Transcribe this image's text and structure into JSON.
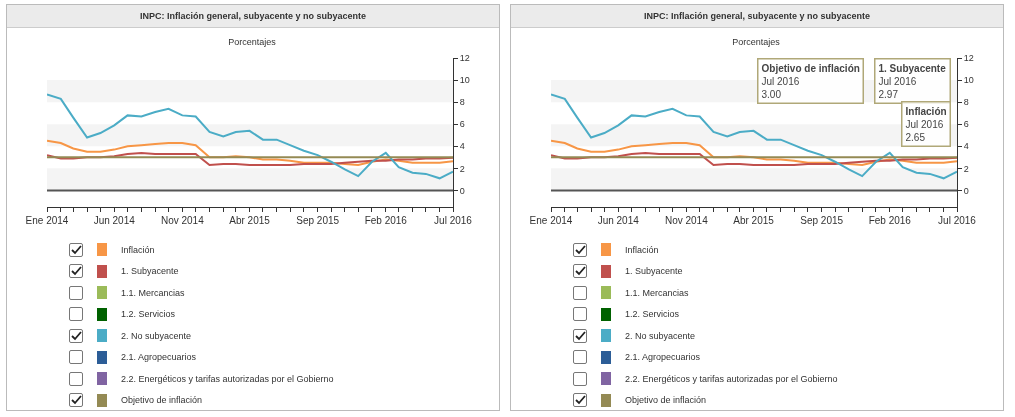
{
  "chart_data": [
    {
      "type": "line",
      "title": "INPC: Inflación general, subyacente y no subyacente",
      "subtitle": "Porcentajes",
      "x": [
        "2014-01",
        "2014-02",
        "2014-03",
        "2014-04",
        "2014-05",
        "2014-06",
        "2014-07",
        "2014-08",
        "2014-09",
        "2014-10",
        "2014-11",
        "2014-12",
        "2015-01",
        "2015-02",
        "2015-03",
        "2015-04",
        "2015-05",
        "2015-06",
        "2015-07",
        "2015-08",
        "2015-09",
        "2015-10",
        "2015-11",
        "2015-12",
        "2016-01",
        "2016-02",
        "2016-03",
        "2016-04",
        "2016-05",
        "2016-06",
        "2016-07"
      ],
      "series": [
        {
          "name": "Inflación",
          "color": "#f79646",
          "values": [
            4.5,
            4.3,
            3.8,
            3.5,
            3.5,
            3.7,
            4.0,
            4.1,
            4.2,
            4.3,
            4.3,
            4.1,
            3.0,
            3.0,
            3.1,
            3.0,
            2.8,
            2.8,
            2.7,
            2.5,
            2.5,
            2.5,
            2.4,
            2.3,
            2.6,
            2.8,
            2.7,
            2.5,
            2.5,
            2.5,
            2.65
          ]
        },
        {
          "name": "1. Subyacente",
          "color": "#c0504d",
          "values": [
            3.2,
            2.9,
            2.9,
            3.0,
            3.0,
            3.1,
            3.3,
            3.4,
            3.3,
            3.3,
            3.3,
            3.3,
            2.3,
            2.4,
            2.4,
            2.3,
            2.3,
            2.3,
            2.3,
            2.4,
            2.4,
            2.4,
            2.5,
            2.6,
            2.7,
            2.7,
            2.8,
            2.8,
            2.9,
            2.9,
            2.97
          ]
        },
        {
          "name": "1.1. Mercancias",
          "color": "#9bbb59",
          "values": [
            null,
            null,
            null,
            null,
            null,
            null,
            null,
            null,
            null,
            null,
            null,
            null,
            null,
            null,
            null,
            null,
            null,
            null,
            null,
            null,
            null,
            null,
            null,
            null,
            null,
            null,
            null,
            null,
            null,
            null,
            null
          ]
        },
        {
          "name": "1.2. Servicios",
          "color": "#006100",
          "values": [
            null,
            null,
            null,
            null,
            null,
            null,
            null,
            null,
            null,
            null,
            null,
            null,
            null,
            null,
            null,
            null,
            null,
            null,
            null,
            null,
            null,
            null,
            null,
            null,
            null,
            null,
            null,
            null,
            null,
            null,
            null
          ]
        },
        {
          "name": "2. No subyacente",
          "color": "#4bacc6",
          "values": [
            8.7,
            8.3,
            6.6,
            4.8,
            5.2,
            5.9,
            6.8,
            6.7,
            7.1,
            7.4,
            6.8,
            6.7,
            5.3,
            4.9,
            5.3,
            5.4,
            4.6,
            4.6,
            4.1,
            3.6,
            3.2,
            2.6,
            1.9,
            1.3,
            2.6,
            3.4,
            2.1,
            1.6,
            1.5,
            1.1,
            1.7
          ]
        },
        {
          "name": "2.1. Agropecuarios",
          "color": "#2c5d97",
          "values": [
            null,
            null,
            null,
            null,
            null,
            null,
            null,
            null,
            null,
            null,
            null,
            null,
            null,
            null,
            null,
            null,
            null,
            null,
            null,
            null,
            null,
            null,
            null,
            null,
            null,
            null,
            null,
            null,
            null,
            null,
            null
          ]
        },
        {
          "name": "2.2. Energéticos y tarifas autorizadas por el Gobierno",
          "color": "#8064a2",
          "values": [
            null,
            null,
            null,
            null,
            null,
            null,
            null,
            null,
            null,
            null,
            null,
            null,
            null,
            null,
            null,
            null,
            null,
            null,
            null,
            null,
            null,
            null,
            null,
            null,
            null,
            null,
            null,
            null,
            null,
            null,
            null
          ]
        },
        {
          "name": "Objetivo de inflación",
          "color": "#948a54",
          "values": [
            3,
            3,
            3,
            3,
            3,
            3,
            3,
            3,
            3,
            3,
            3,
            3,
            3,
            3,
            3,
            3,
            3,
            3,
            3,
            3,
            3,
            3,
            3,
            3,
            3,
            3,
            3,
            3,
            3,
            3,
            3.0
          ]
        }
      ],
      "xlim": [
        "2014-01",
        "2016-07"
      ],
      "xticks": [
        {
          "value": "2014-01",
          "label": "Ene 2014"
        },
        {
          "value": "2014-02",
          "label": null
        },
        {
          "value": "2014-03",
          "label": null
        },
        {
          "value": "2014-04",
          "label": null
        },
        {
          "value": "2014-05",
          "label": null
        },
        {
          "value": "2014-06",
          "label": "Jun 2014"
        },
        {
          "value": "2014-07",
          "label": null
        },
        {
          "value": "2014-08",
          "label": null
        },
        {
          "value": "2014-09",
          "label": null
        },
        {
          "value": "2014-10",
          "label": null
        },
        {
          "value": "2014-11",
          "label": "Nov 2014"
        },
        {
          "value": "2014-12",
          "label": null
        },
        {
          "value": "2015-01",
          "label": null
        },
        {
          "value": "2015-02",
          "label": null
        },
        {
          "value": "2015-03",
          "label": null
        },
        {
          "value": "2015-04",
          "label": "Abr 2015"
        },
        {
          "value": "2015-05",
          "label": null
        },
        {
          "value": "2015-06",
          "label": null
        },
        {
          "value": "2015-07",
          "label": null
        },
        {
          "value": "2015-08",
          "label": null
        },
        {
          "value": "2015-09",
          "label": "Sep 2015"
        },
        {
          "value": "2015-10",
          "label": null
        },
        {
          "value": "2015-11",
          "label": null
        },
        {
          "value": "2015-12",
          "label": null
        },
        {
          "value": "2016-01",
          "label": null
        },
        {
          "value": "2016-02",
          "label": "Feb 2016"
        },
        {
          "value": "2016-03",
          "label": null
        },
        {
          "value": "2016-04",
          "label": null
        },
        {
          "value": "2016-05",
          "label": null
        },
        {
          "value": "2016-06",
          "label": null
        },
        {
          "value": "2016-07",
          "label": "Jul 2016"
        }
      ],
      "ylim": [
        -1.5,
        12
      ],
      "yticks": [
        0,
        2,
        4,
        6,
        8,
        10,
        12
      ],
      "ref_lines": [
        {
          "axis": "y",
          "value": 0,
          "color": "#555555"
        }
      ],
      "bands": [
        {
          "axis": "y",
          "from": 0,
          "to": 2,
          "color": "#f4f4f4"
        },
        {
          "axis": "y",
          "from": 4,
          "to": 6,
          "color": "#f4f4f4"
        },
        {
          "axis": "y",
          "from": 8,
          "to": 10,
          "color": "#f4f4f4"
        }
      ],
      "grid": false,
      "legend": "bottom",
      "marker": "none",
      "line_style": "solid"
    },
    {
      "type": "line",
      "title": "INPC: Inflación general, subyacente y no subyacente",
      "subtitle": "Porcentajes",
      "x": [
        "2014-01",
        "2014-02",
        "2014-03",
        "2014-04",
        "2014-05",
        "2014-06",
        "2014-07",
        "2014-08",
        "2014-09",
        "2014-10",
        "2014-11",
        "2014-12",
        "2015-01",
        "2015-02",
        "2015-03",
        "2015-04",
        "2015-05",
        "2015-06",
        "2015-07",
        "2015-08",
        "2015-09",
        "2015-10",
        "2015-11",
        "2015-12",
        "2016-01",
        "2016-02",
        "2016-03",
        "2016-04",
        "2016-05",
        "2016-06",
        "2016-07"
      ],
      "series": [
        {
          "name": "Inflación",
          "color": "#f79646",
          "values": [
            4.5,
            4.3,
            3.8,
            3.5,
            3.5,
            3.7,
            4.0,
            4.1,
            4.2,
            4.3,
            4.3,
            4.1,
            3.0,
            3.0,
            3.1,
            3.0,
            2.8,
            2.8,
            2.7,
            2.5,
            2.5,
            2.5,
            2.4,
            2.3,
            2.6,
            2.8,
            2.7,
            2.5,
            2.5,
            2.5,
            2.65
          ]
        },
        {
          "name": "1. Subyacente",
          "color": "#c0504d",
          "values": [
            3.2,
            2.9,
            2.9,
            3.0,
            3.0,
            3.1,
            3.3,
            3.4,
            3.3,
            3.3,
            3.3,
            3.3,
            2.3,
            2.4,
            2.4,
            2.3,
            2.3,
            2.3,
            2.3,
            2.4,
            2.4,
            2.4,
            2.5,
            2.6,
            2.7,
            2.7,
            2.8,
            2.8,
            2.9,
            2.9,
            2.97
          ]
        },
        {
          "name": "1.1. Mercancias",
          "color": "#9bbb59",
          "values": [
            null,
            null,
            null,
            null,
            null,
            null,
            null,
            null,
            null,
            null,
            null,
            null,
            null,
            null,
            null,
            null,
            null,
            null,
            null,
            null,
            null,
            null,
            null,
            null,
            null,
            null,
            null,
            null,
            null,
            null,
            null
          ]
        },
        {
          "name": "1.2. Servicios",
          "color": "#006100",
          "values": [
            null,
            null,
            null,
            null,
            null,
            null,
            null,
            null,
            null,
            null,
            null,
            null,
            null,
            null,
            null,
            null,
            null,
            null,
            null,
            null,
            null,
            null,
            null,
            null,
            null,
            null,
            null,
            null,
            null,
            null,
            null
          ]
        },
        {
          "name": "2. No subyacente",
          "color": "#4bacc6",
          "values": [
            8.7,
            8.3,
            6.6,
            4.8,
            5.2,
            5.9,
            6.8,
            6.7,
            7.1,
            7.4,
            6.8,
            6.7,
            5.3,
            4.9,
            5.3,
            5.4,
            4.6,
            4.6,
            4.1,
            3.6,
            3.2,
            2.6,
            1.9,
            1.3,
            2.6,
            3.4,
            2.1,
            1.6,
            1.5,
            1.1,
            1.7
          ]
        },
        {
          "name": "2.1. Agropecuarios",
          "color": "#2c5d97",
          "values": [
            null,
            null,
            null,
            null,
            null,
            null,
            null,
            null,
            null,
            null,
            null,
            null,
            null,
            null,
            null,
            null,
            null,
            null,
            null,
            null,
            null,
            null,
            null,
            null,
            null,
            null,
            null,
            null,
            null,
            null,
            null
          ]
        },
        {
          "name": "2.2. Energéticos y tarifas autorizadas por el Gobierno",
          "color": "#8064a2",
          "values": [
            null,
            null,
            null,
            null,
            null,
            null,
            null,
            null,
            null,
            null,
            null,
            null,
            null,
            null,
            null,
            null,
            null,
            null,
            null,
            null,
            null,
            null,
            null,
            null,
            null,
            null,
            null,
            null,
            null,
            null,
            null
          ]
        },
        {
          "name": "Objetivo de inflación",
          "color": "#948a54",
          "values": [
            3,
            3,
            3,
            3,
            3,
            3,
            3,
            3,
            3,
            3,
            3,
            3,
            3,
            3,
            3,
            3,
            3,
            3,
            3,
            3,
            3,
            3,
            3,
            3,
            3,
            3,
            3,
            3,
            3,
            3,
            3.0
          ]
        }
      ],
      "xlim": [
        "2014-01",
        "2016-07"
      ],
      "xticks": [
        {
          "value": "2014-01",
          "label": "Ene 2014"
        },
        {
          "value": "2014-02",
          "label": null
        },
        {
          "value": "2014-03",
          "label": null
        },
        {
          "value": "2014-04",
          "label": null
        },
        {
          "value": "2014-05",
          "label": null
        },
        {
          "value": "2014-06",
          "label": "Jun 2014"
        },
        {
          "value": "2014-07",
          "label": null
        },
        {
          "value": "2014-08",
          "label": null
        },
        {
          "value": "2014-09",
          "label": null
        },
        {
          "value": "2014-10",
          "label": null
        },
        {
          "value": "2014-11",
          "label": "Nov 2014"
        },
        {
          "value": "2014-12",
          "label": null
        },
        {
          "value": "2015-01",
          "label": null
        },
        {
          "value": "2015-02",
          "label": null
        },
        {
          "value": "2015-03",
          "label": null
        },
        {
          "value": "2015-04",
          "label": "Abr 2015"
        },
        {
          "value": "2015-05",
          "label": null
        },
        {
          "value": "2015-06",
          "label": null
        },
        {
          "value": "2015-07",
          "label": null
        },
        {
          "value": "2015-08",
          "label": null
        },
        {
          "value": "2015-09",
          "label": "Sep 2015"
        },
        {
          "value": "2015-10",
          "label": null
        },
        {
          "value": "2015-11",
          "label": null
        },
        {
          "value": "2015-12",
          "label": null
        },
        {
          "value": "2016-01",
          "label": null
        },
        {
          "value": "2016-02",
          "label": "Feb 2016"
        },
        {
          "value": "2016-03",
          "label": null
        },
        {
          "value": "2016-04",
          "label": null
        },
        {
          "value": "2016-05",
          "label": null
        },
        {
          "value": "2016-06",
          "label": null
        },
        {
          "value": "2016-07",
          "label": "Jul 2016"
        }
      ],
      "ylim": [
        -1.5,
        12
      ],
      "yticks": [
        0,
        2,
        4,
        6,
        8,
        10,
        12
      ],
      "ref_lines": [
        {
          "axis": "y",
          "value": 0,
          "color": "#555555"
        }
      ],
      "bands": [
        {
          "axis": "y",
          "from": 0,
          "to": 2,
          "color": "#f4f4f4"
        },
        {
          "axis": "y",
          "from": 4,
          "to": 6,
          "color": "#f4f4f4"
        },
        {
          "axis": "y",
          "from": 8,
          "to": 10,
          "color": "#f4f4f4"
        }
      ],
      "annotations": [
        "Objetivo de inflación\nJul 2016\n3.00",
        "1. Subyacente\nJul 2016\n2.97",
        "Inflación\nJul 2016\n2.65"
      ],
      "grid": false,
      "legend": "bottom",
      "marker": "none",
      "line_style": "solid"
    }
  ]
}
